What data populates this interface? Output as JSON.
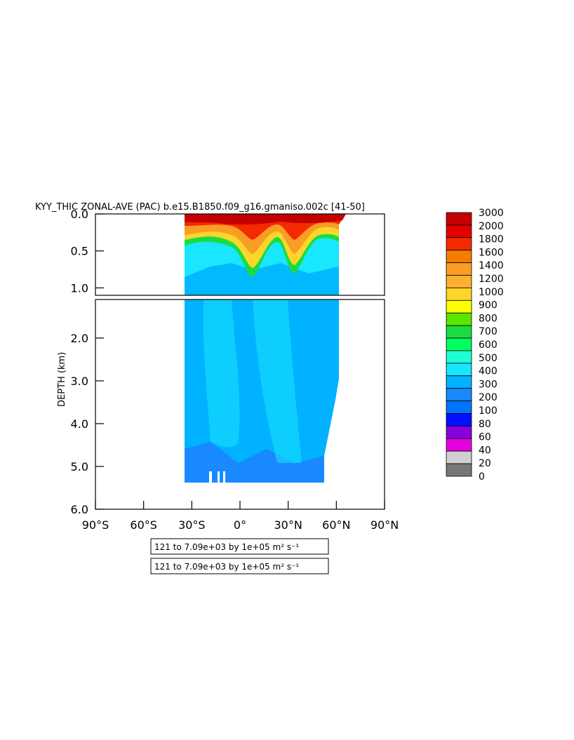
{
  "title": "KYY_THIC ZONAL-AVE (PAC) b.e15.B1850.f09_g16.gmaniso.002c [41-50]",
  "chart_data": {
    "type": "heatmap",
    "title": "KYY_THIC ZONAL-AVE (PAC) b.e15.B1850.f09_g16.gmaniso.002c [41-50]",
    "ylabel": "DEPTH (km)",
    "xlabel": "",
    "x_ticks": [
      "90°S",
      "60°S",
      "30°S",
      "0°",
      "30°N",
      "60°N",
      "90°N"
    ],
    "top_panel_y_ticks": [
      "0.0",
      "0.5",
      "1.0"
    ],
    "bottom_panel_y_ticks": [
      "2.0",
      "3.0",
      "4.0",
      "5.0",
      "6.0"
    ],
    "xlim": [
      -90,
      90
    ],
    "top_panel_ylim_km": [
      0.0,
      1.1
    ],
    "bottom_panel_ylim_km": [
      1.1,
      6.0
    ],
    "data_extent": {
      "lat_min": -34,
      "lat_max": 61,
      "max_depth_km": 5.4
    },
    "colorbar": {
      "levels": [
        "3000",
        "2000",
        "1800",
        "1600",
        "1400",
        "1200",
        "1000",
        "900",
        "800",
        "700",
        "600",
        "500",
        "400",
        "300",
        "200",
        "100",
        "80",
        "60",
        "40",
        "20",
        "0"
      ],
      "colors": [
        "#c40000",
        "#e40000",
        "#f42a00",
        "#f67c00",
        "#f99d24",
        "#fbb030",
        "#fed52a",
        "#ffff00",
        "#5ae600",
        "#1cdb42",
        "#00ff5f",
        "#1effd6",
        "#19e6ff",
        "#00b2ff",
        "#1889ff",
        "#0073ff",
        "#0010ff",
        "#8800dd",
        "#e600dd",
        "#d0d0d0",
        "#777777"
      ]
    },
    "info_boxes": [
      "121 to 7.09e+03 by 1e+05 m² s⁻¹",
      "121 to 7.09e+03 by 1e+05 m² s⁻¹"
    ]
  }
}
